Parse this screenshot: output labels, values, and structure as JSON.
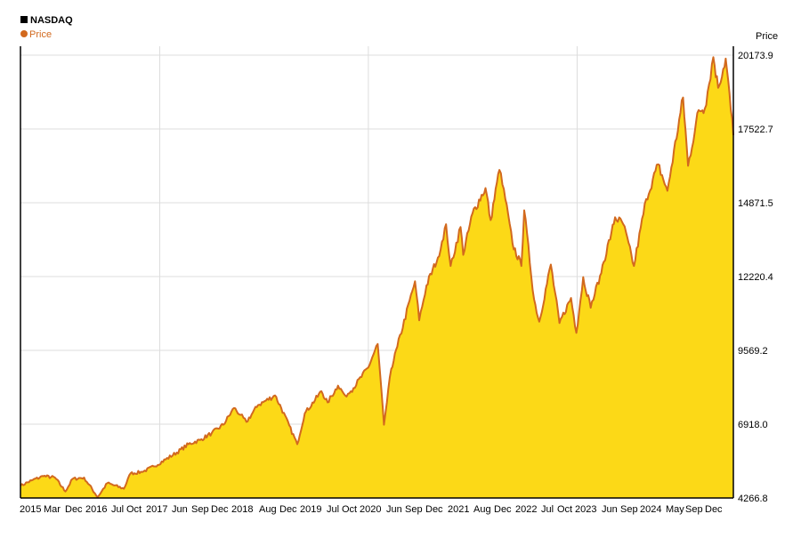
{
  "chart_data": {
    "type": "area",
    "title": "NASDAQ",
    "legend": [
      {
        "name": "Price",
        "color": "#d2691e"
      }
    ],
    "ylabel": "Price",
    "xlabel": "",
    "ylim": [
      4266.8,
      20173.9
    ],
    "xlim": [
      "2015-01-01",
      "2025-03-31"
    ],
    "y_ticks": [
      "20173.9",
      "17522.7",
      "14871.5",
      "12220.4",
      "9569.2",
      "6918.0",
      "4266.8"
    ],
    "x_ticks": [
      "2015",
      "Mar",
      "Dec",
      "2016",
      "Jul",
      "Oct",
      "2017",
      "Jun",
      "Sep",
      "Dec",
      "2018",
      "Aug",
      "Dec",
      "2019",
      "Jul",
      "Oct",
      "2020",
      "Jun",
      "Sep",
      "Dec",
      "2021",
      "Aug",
      "Dec",
      "2022",
      "Jul",
      "Oct",
      "2023",
      "Jun",
      "Sep",
      "2024",
      "May",
      "Sep",
      "Dec"
    ],
    "grid": {
      "vertical": true,
      "horizontal": true
    },
    "legend_position": "top-left",
    "line_color": "#d2691e",
    "fill_color": "#fcd917",
    "series": [
      {
        "name": "Price",
        "x": [
          "2015-01-01",
          "2015-03-01",
          "2015-05-01",
          "2015-07-01",
          "2015-08-25",
          "2015-10-01",
          "2015-12-01",
          "2016-02-10",
          "2016-04-01",
          "2016-06-27",
          "2016-08-01",
          "2016-10-01",
          "2016-12-01",
          "2017-02-01",
          "2017-04-01",
          "2017-06-01",
          "2017-08-01",
          "2017-10-01",
          "2017-12-01",
          "2018-01-26",
          "2018-03-01",
          "2018-04-01",
          "2018-06-01",
          "2018-08-29",
          "2018-10-01",
          "2018-12-24",
          "2019-02-01",
          "2019-04-30",
          "2019-06-01",
          "2019-07-26",
          "2019-09-01",
          "2019-10-01",
          "2019-12-31",
          "2020-02-19",
          "2020-03-23",
          "2020-04-30",
          "2020-06-01",
          "2020-09-02",
          "2020-09-24",
          "2020-11-01",
          "2020-12-31",
          "2021-02-12",
          "2021-03-08",
          "2021-04-29",
          "2021-05-13",
          "2021-07-01",
          "2021-09-07",
          "2021-10-04",
          "2021-11-19",
          "2021-12-20",
          "2022-01-27",
          "2022-03-14",
          "2022-03-29",
          "2022-05-20",
          "2022-06-16",
          "2022-08-16",
          "2022-09-30",
          "2022-11-30",
          "2022-12-28",
          "2023-02-02",
          "2023-03-13",
          "2023-05-01",
          "2023-06-30",
          "2023-07-19",
          "2023-08-31",
          "2023-10-26",
          "2023-12-29",
          "2024-03-01",
          "2024-04-19",
          "2024-07-10",
          "2024-08-05",
          "2024-09-30",
          "2024-11-01",
          "2024-12-16",
          "2025-01-10",
          "2025-02-19",
          "2025-03-31"
        ],
        "values": [
          4700,
          4900,
          5050,
          5000,
          4500,
          4950,
          5000,
          4300,
          4800,
          4600,
          5150,
          5200,
          5400,
          5650,
          5900,
          6200,
          6350,
          6600,
          6900,
          7500,
          7250,
          7000,
          7600,
          7950,
          7500,
          6200,
          7300,
          8100,
          7700,
          8300,
          7950,
          8100,
          8950,
          9800,
          6900,
          8900,
          9700,
          12050,
          10650,
          11900,
          12900,
          14100,
          12600,
          14000,
          13000,
          14500,
          15400,
          14250,
          16050,
          15000,
          13400,
          12600,
          14600,
          11400,
          10600,
          12650,
          10550,
          11450,
          10200,
          12200,
          11100,
          12250,
          13800,
          14350,
          14100,
          12600,
          15000,
          16250,
          15300,
          18650,
          16200,
          18200,
          18250,
          20100,
          19000,
          20050,
          17300
        ]
      }
    ]
  }
}
